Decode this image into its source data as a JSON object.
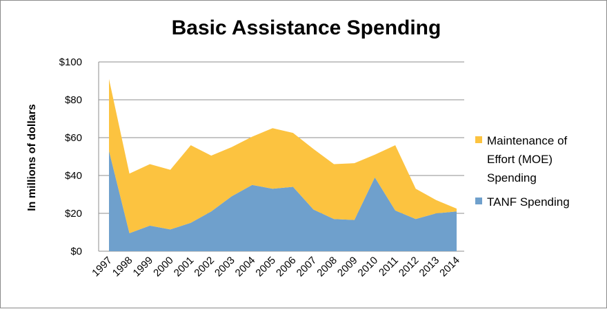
{
  "chart_data": {
    "type": "area",
    "stacked": true,
    "title": "Basic Assistance Spending",
    "ylabel": "In millions of dollars",
    "xlabel": "",
    "categories": [
      "1997",
      "1998",
      "1999",
      "2000",
      "2001",
      "2002",
      "2003",
      "2004",
      "2005",
      "2006",
      "2007",
      "2008",
      "2009",
      "2010",
      "2011",
      "2012",
      "2013",
      "2014"
    ],
    "ylim": [
      0,
      100
    ],
    "yticks": [
      0,
      20,
      40,
      60,
      80,
      100
    ],
    "ytick_labels": [
      "$0",
      "$20",
      "$40",
      "$60",
      "$80",
      "$100"
    ],
    "grid": true,
    "legend_position": "right",
    "series": [
      {
        "name": "TANF Spending",
        "color": "#6FA0CC",
        "values": [
          53,
          9.5,
          13.5,
          11.5,
          15,
          21,
          29,
          35,
          33,
          34,
          22,
          17,
          16.5,
          39,
          21.5,
          17,
          20,
          21
        ]
      },
      {
        "name": "Maintenance of Effort (MOE) Spending",
        "legend_lines": [
          "Maintenance of",
          "Effort (MOE)",
          "Spending"
        ],
        "color": "#FCC340",
        "values": [
          38,
          31.5,
          32.5,
          31.5,
          41,
          29.5,
          26,
          25.5,
          32,
          28.5,
          32,
          29,
          30,
          12,
          34.5,
          16,
          7,
          1.5
        ]
      }
    ]
  }
}
